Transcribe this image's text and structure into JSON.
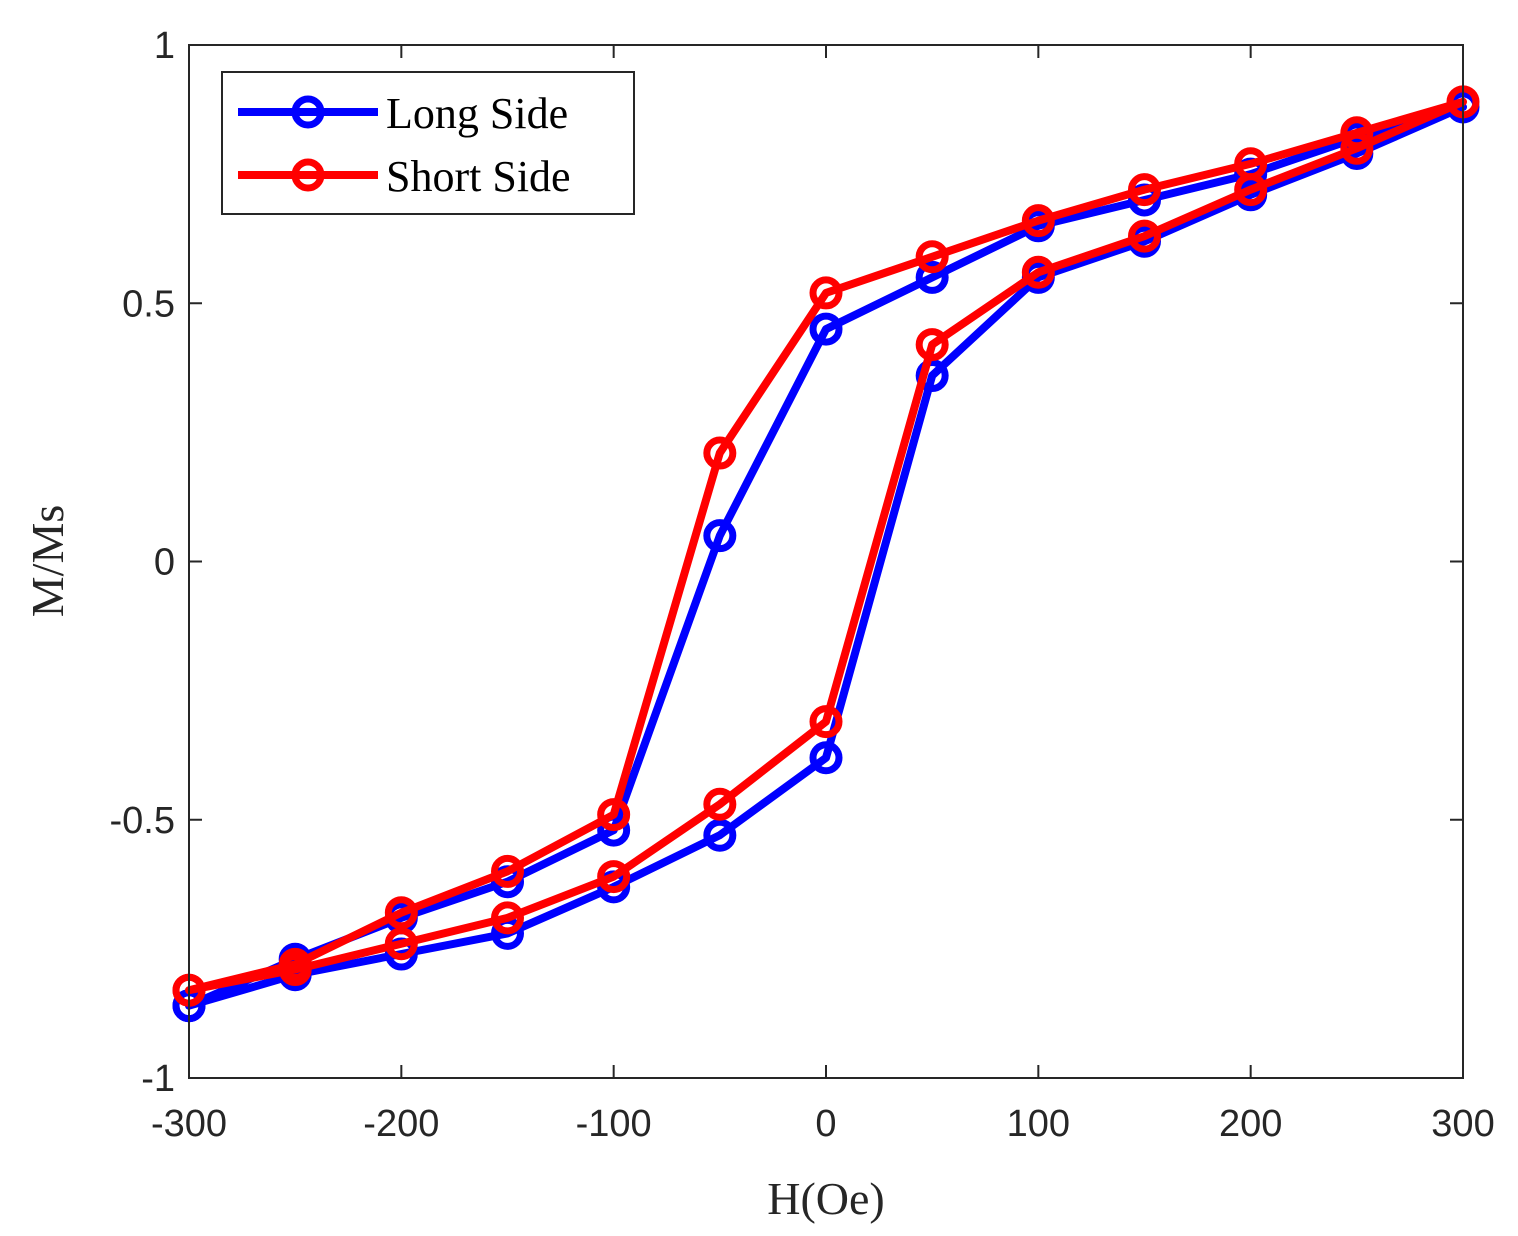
{
  "chart_data": {
    "type": "line",
    "title": "",
    "xlabel": "H(Oe)",
    "ylabel": "M/Ms",
    "xlim": [
      -300,
      300
    ],
    "ylim": [
      -1,
      1
    ],
    "xticks": [
      -300,
      -200,
      -100,
      0,
      100,
      200,
      300
    ],
    "yticks": [
      -1,
      -0.5,
      0,
      0.5,
      1
    ],
    "xtick_labels": [
      "-300",
      "-200",
      "-100",
      "0",
      "100",
      "200",
      "300"
    ],
    "ytick_labels": [
      "-1",
      "-0.5",
      "0",
      "0.5",
      "1"
    ],
    "grid": false,
    "legend_position": "top-left",
    "series": [
      {
        "name": "Long Side",
        "color": "#0000ff",
        "marker": "circle",
        "x": [
          -300,
          -250,
          -200,
          -150,
          -100,
          -50,
          0,
          50,
          100,
          150,
          200,
          250,
          300,
          250,
          200,
          150,
          100,
          50,
          0,
          -50,
          -100,
          -150,
          -200,
          -250,
          -300
        ],
        "y": [
          -0.86,
          -0.77,
          -0.69,
          -0.62,
          -0.52,
          0.05,
          0.45,
          0.55,
          0.65,
          0.7,
          0.75,
          0.82,
          0.88,
          0.79,
          0.71,
          0.62,
          0.55,
          0.36,
          -0.38,
          -0.53,
          -0.63,
          -0.72,
          -0.76,
          -0.8,
          -0.86
        ]
      },
      {
        "name": "Short Side",
        "color": "#ff0000",
        "marker": "circle",
        "x": [
          -300,
          -250,
          -200,
          -150,
          -100,
          -50,
          0,
          50,
          100,
          150,
          200,
          250,
          300,
          250,
          200,
          150,
          100,
          50,
          0,
          -50,
          -100,
          -150,
          -200,
          -250,
          -300
        ],
        "y": [
          -0.83,
          -0.78,
          -0.68,
          -0.6,
          -0.49,
          0.21,
          0.52,
          0.59,
          0.66,
          0.72,
          0.77,
          0.83,
          0.89,
          0.8,
          0.72,
          0.63,
          0.56,
          0.42,
          -0.31,
          -0.47,
          -0.61,
          -0.69,
          -0.74,
          -0.79,
          -0.83
        ]
      }
    ]
  }
}
